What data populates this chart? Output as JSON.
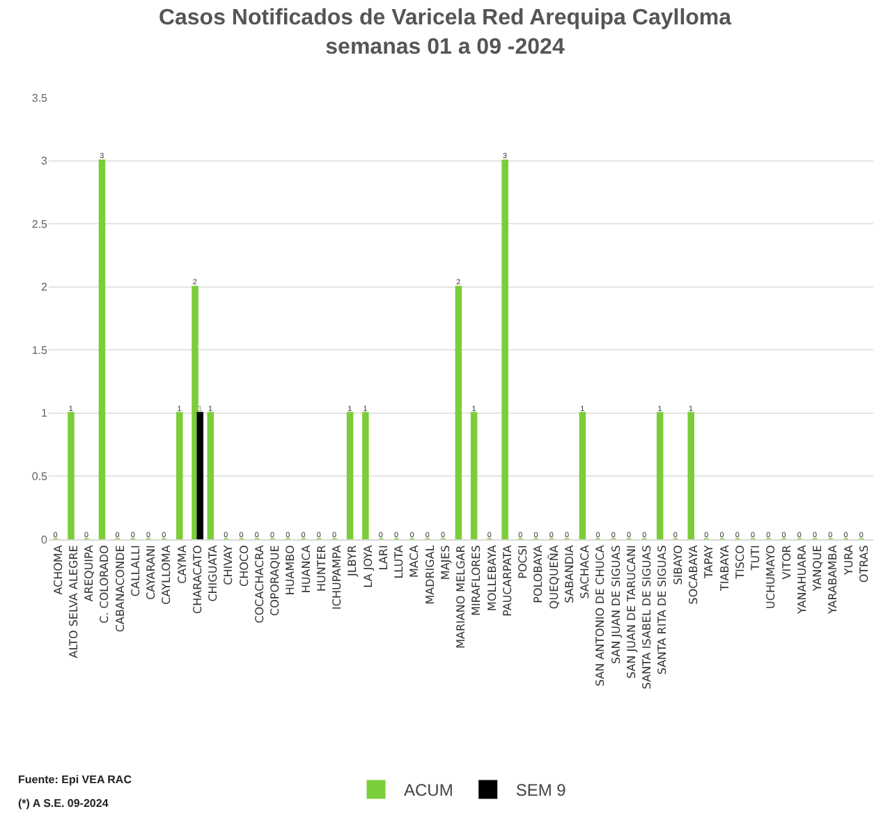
{
  "chart_data": {
    "type": "bar",
    "title": "Casos Notificados de Varicela Red Arequipa Caylloma",
    "subtitle": "semanas 01 a 09 -2024",
    "categories": [
      "ACHOMA",
      "ALTO SELVA ALEGRE",
      "AREQUIPA",
      "C. COLORADO",
      "CABANACONDE",
      "CALLALLI",
      "CAYARANI",
      "CAYLLOMA",
      "CAYMA",
      "CHARACATO",
      "CHIGUATA",
      "CHIVAY",
      "CHOCO",
      "COCACHACRA",
      "COPORAQUE",
      "HUAMBO",
      "HUANCA",
      "HUNTER",
      "ICHUPAMPA",
      "JLBYR",
      "LA JOYA",
      "LARI",
      "LLUTA",
      "MACA",
      "MADRIGAL",
      "MAJES",
      "MARIANO MELGAR",
      "MIRAFLORES",
      "MOLLEBAYA",
      "PAUCARPATA",
      "POCSI",
      "POLOBAYA",
      "QUEQUEÑA",
      "SABANDIA",
      "SACHACA",
      "SAN ANTONIO DE CHUCA",
      "SAN JUAN DE SIGUAS",
      "SAN JUAN DE TARUCANI",
      "SANTA ISABEL DE SIGUAS",
      "SANTA RITA DE SIGUAS",
      "SIBAYO",
      "SOCABAYA",
      "TAPAY",
      "TIABAYA",
      "TISCO",
      "TUTI",
      "UCHUMAYO",
      "VITOR",
      "YANAHUARA",
      "YANQUE",
      "YARABAMBA",
      "YURA",
      "OTRAS"
    ],
    "series": [
      {
        "name": "ACUM",
        "color": "#7ccd3a",
        "values": [
          0,
          1,
          0,
          3,
          0,
          0,
          0,
          0,
          1,
          2,
          1,
          0,
          0,
          0,
          0,
          0,
          0,
          0,
          0,
          1,
          1,
          0,
          0,
          0,
          0,
          0,
          2,
          1,
          0,
          3,
          0,
          0,
          0,
          0,
          1,
          0,
          0,
          0,
          0,
          1,
          0,
          1,
          0,
          0,
          0,
          0,
          0,
          0,
          0,
          0,
          0,
          0,
          0
        ],
        "value_labels": [
          "0",
          "1",
          "0",
          "3",
          "0",
          "0",
          "0",
          "0",
          "1",
          "2",
          "1",
          "0",
          "0",
          "0",
          "0",
          "0",
          "0",
          "0",
          "0",
          "1",
          "1",
          "0",
          "0",
          "0",
          "0",
          "0",
          "2",
          "1",
          "0",
          "3",
          "0",
          "0",
          "0",
          "0",
          "1",
          "0",
          "0",
          "0",
          "0",
          "1",
          "0",
          "1",
          "0",
          "0",
          "0",
          "0",
          "0",
          "0",
          "0",
          "0",
          "0",
          "0",
          "0"
        ]
      },
      {
        "name": "SEM 9",
        "color": "#000000",
        "values": [
          null,
          null,
          null,
          null,
          null,
          null,
          null,
          null,
          null,
          1,
          null,
          null,
          null,
          null,
          null,
          null,
          null,
          null,
          null,
          null,
          null,
          null,
          null,
          null,
          null,
          null,
          null,
          null,
          null,
          null,
          null,
          null,
          null,
          null,
          null,
          null,
          null,
          null,
          null,
          null,
          null,
          null,
          null,
          null,
          null,
          null,
          null,
          null,
          null,
          null,
          null,
          null,
          null
        ],
        "value_labels": [
          null,
          null,
          null,
          null,
          null,
          null,
          null,
          null,
          null,
          "1",
          null,
          null,
          null,
          null,
          null,
          null,
          null,
          null,
          null,
          null,
          null,
          null,
          null,
          null,
          null,
          null,
          null,
          null,
          null,
          null,
          null,
          null,
          null,
          null,
          null,
          null,
          null,
          null,
          null,
          null,
          null,
          null,
          null,
          null,
          null,
          null,
          null,
          null,
          null,
          null,
          null,
          null,
          null
        ]
      }
    ],
    "ylim": [
      0,
      3.5
    ],
    "yticks": [
      0,
      0.5,
      1,
      1.5,
      2,
      2.5,
      3,
      3.5
    ],
    "grid": "y",
    "legend": "bottom",
    "annotations": [
      "Fuente: Epi VEA RAC",
      "(*) A S.E. 09-2024"
    ]
  }
}
